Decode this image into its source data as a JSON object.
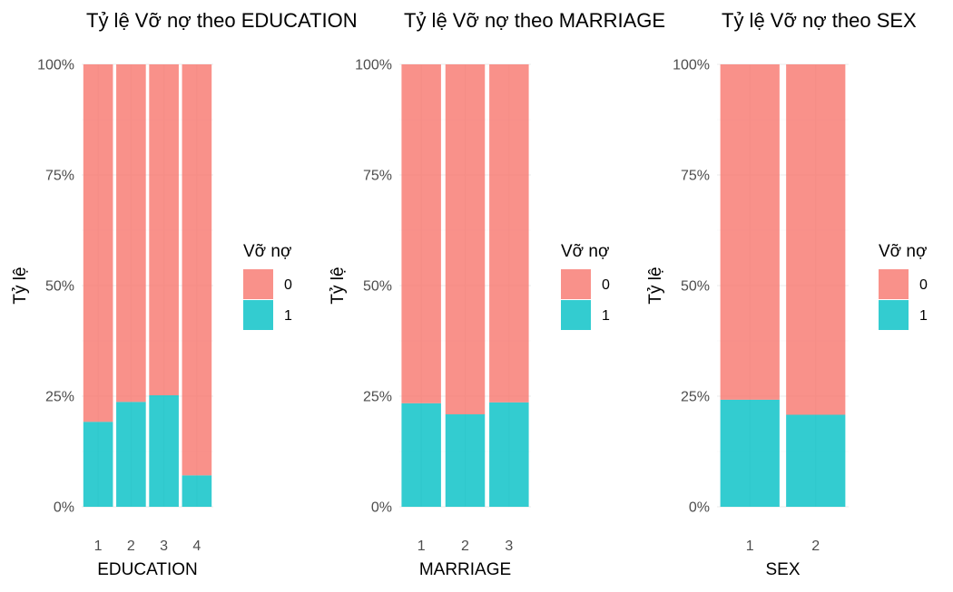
{
  "legend": {
    "title": "Vỡ nợ",
    "entries": [
      {
        "label": "0",
        "color": "#F8766D"
      },
      {
        "label": "1",
        "color": "#00BFC4"
      }
    ]
  },
  "chart_data": [
    {
      "type": "bar",
      "stacked": "percent",
      "title": "Tỷ lệ Vỡ nợ theo EDUCATION",
      "xlabel": "EDUCATION",
      "ylabel": "Tỷ lệ",
      "ylim": [
        0,
        1
      ],
      "yticks": [
        "0%",
        "25%",
        "50%",
        "75%",
        "100%"
      ],
      "grid": true,
      "legend_position": "right",
      "categories": [
        "1",
        "2",
        "3",
        "4"
      ],
      "series": [
        {
          "name": "0",
          "color": "#F8766D",
          "values": [
            0.808,
            0.763,
            0.748,
            0.929
          ]
        },
        {
          "name": "1",
          "color": "#00BFC4",
          "values": [
            0.192,
            0.237,
            0.252,
            0.071
          ]
        }
      ]
    },
    {
      "type": "bar",
      "stacked": "percent",
      "title": "Tỷ lệ Vỡ nợ theo MARRIAGE",
      "xlabel": "MARRIAGE",
      "ylabel": "Tỷ lệ",
      "ylim": [
        0,
        1
      ],
      "yticks": [
        "0%",
        "25%",
        "50%",
        "75%",
        "100%"
      ],
      "grid": true,
      "legend_position": "right",
      "categories": [
        "1",
        "2",
        "3"
      ],
      "series": [
        {
          "name": "0",
          "color": "#F8766D",
          "values": [
            0.766,
            0.791,
            0.764
          ]
        },
        {
          "name": "1",
          "color": "#00BFC4",
          "values": [
            0.234,
            0.209,
            0.236
          ]
        }
      ]
    },
    {
      "type": "bar",
      "stacked": "percent",
      "title": "Tỷ lệ Vỡ nợ theo SEX",
      "xlabel": "SEX",
      "ylabel": "Tỷ lệ",
      "ylim": [
        0,
        1
      ],
      "yticks": [
        "0%",
        "25%",
        "50%",
        "75%",
        "100%"
      ],
      "grid": true,
      "legend_position": "right",
      "categories": [
        "1",
        "2"
      ],
      "series": [
        {
          "name": "0",
          "color": "#F8766D",
          "values": [
            0.758,
            0.792
          ]
        },
        {
          "name": "1",
          "color": "#00BFC4",
          "values": [
            0.242,
            0.208
          ]
        }
      ]
    }
  ]
}
